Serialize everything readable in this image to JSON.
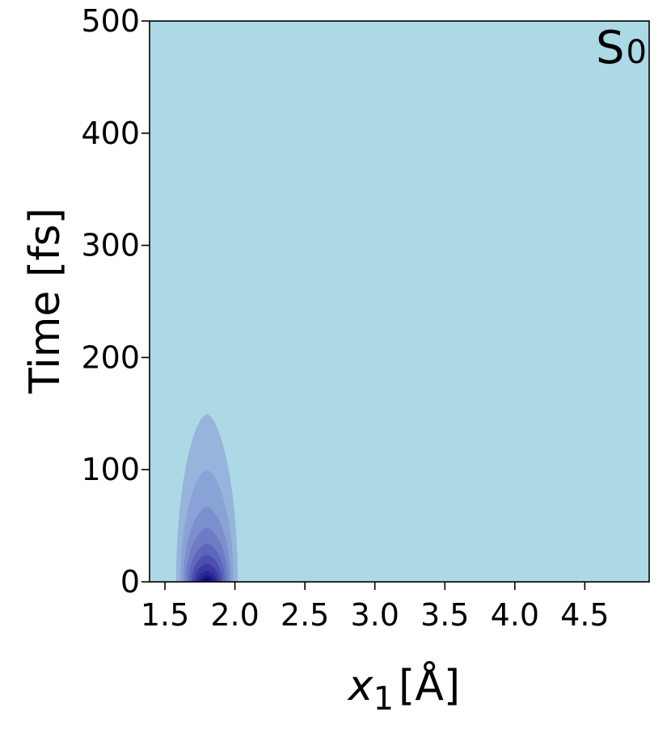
{
  "chart_data": {
    "type": "contour",
    "title": "",
    "panel_label": {
      "main": "S",
      "sub": "0"
    },
    "xlabel": {
      "var": "x",
      "sub": "1",
      "unit": "[Å]"
    },
    "ylabel": "Time [fs]",
    "xlim": [
      1.39,
      4.96
    ],
    "ylim": [
      0,
      500
    ],
    "xticks": [
      1.5,
      2.0,
      2.5,
      3.0,
      3.5,
      4.0,
      4.5
    ],
    "xtick_labels": [
      "1.5",
      "2.0",
      "2.5",
      "3.0",
      "3.5",
      "4.0",
      "4.5"
    ],
    "yticks": [
      0,
      100,
      200,
      300,
      400,
      500
    ],
    "ytick_labels": [
      "0",
      "100",
      "200",
      "300",
      "400",
      "500"
    ],
    "grid": false,
    "colors": {
      "background": "#add8e6",
      "levels": [
        "#96b4dc",
        "#8aa3d6",
        "#7b8fcd",
        "#6c7bc4",
        "#5c66ba",
        "#4b50ae",
        "#3a3aa2",
        "#2a2796",
        "#1c1788",
        "#0f0b7a"
      ]
    },
    "contours": [
      {
        "center_x": 1.8,
        "half_width": 0.22,
        "t_max": 150
      },
      {
        "center_x": 1.8,
        "half_width": 0.19,
        "t_max": 100
      },
      {
        "center_x": 1.8,
        "half_width": 0.17,
        "t_max": 67
      },
      {
        "center_x": 1.8,
        "half_width": 0.15,
        "t_max": 48
      },
      {
        "center_x": 1.8,
        "half_width": 0.13,
        "t_max": 34
      },
      {
        "center_x": 1.8,
        "half_width": 0.11,
        "t_max": 24
      },
      {
        "center_x": 1.8,
        "half_width": 0.09,
        "t_max": 16
      },
      {
        "center_x": 1.8,
        "half_width": 0.07,
        "t_max": 10
      },
      {
        "center_x": 1.8,
        "half_width": 0.05,
        "t_max": 6
      },
      {
        "center_x": 1.8,
        "half_width": 0.03,
        "t_max": 3
      }
    ]
  }
}
